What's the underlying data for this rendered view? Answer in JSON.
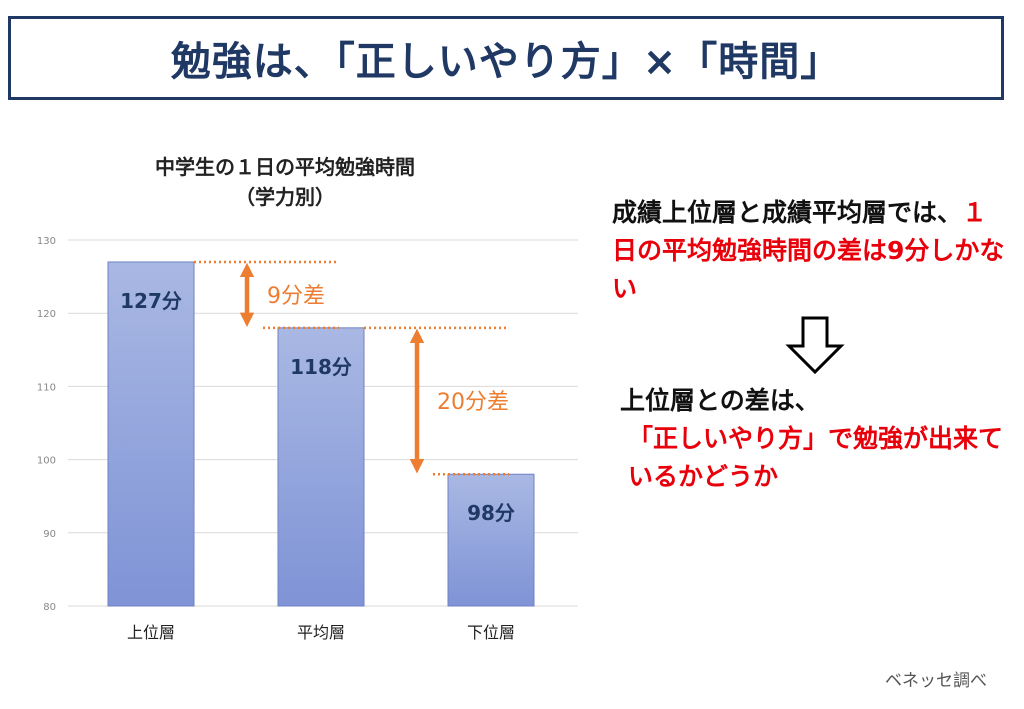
{
  "title": "勉強は、「正しいやり方」×「時間」",
  "chart_data": {
    "type": "bar",
    "title_line1": "中学生の１日の平均勉強時間",
    "title_line2": "（学力別）",
    "categories": [
      "上位層",
      "平均層",
      "下位層"
    ],
    "values": [
      127,
      118,
      98
    ],
    "data_labels": [
      "127分",
      "118分",
      "98分"
    ],
    "ylim": [
      80,
      130
    ],
    "yticks": [
      80,
      90,
      100,
      110,
      120,
      130
    ],
    "grid": true,
    "bar_color_top": "#a9b8e3",
    "bar_color_bottom": "#7f93d6",
    "annotations": [
      {
        "label": "9分差",
        "from": 127,
        "to": 118
      },
      {
        "label": "20分差",
        "from": 118,
        "to": 98
      }
    ],
    "annotation_color": "#ed7d31"
  },
  "side": {
    "p1_black": "成績上位層と成績平均層では、",
    "p1_red": "１日の平均勉強時間の差は9分しかない",
    "p2_black": "上位層との差は、",
    "p3_red": "「正しいやり方」で勉強が出来ているかどうか"
  },
  "source": "ベネッセ調べ",
  "icons": {
    "down_arrow": "down-arrow-icon"
  }
}
